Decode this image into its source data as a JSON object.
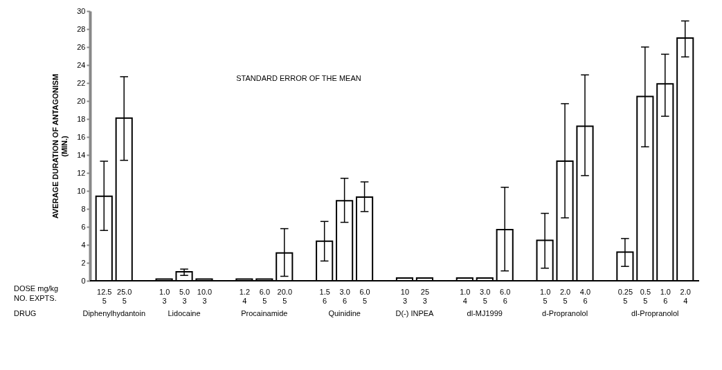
{
  "chart_data": {
    "type": "bar",
    "ylabel": "AVERAGE DURATION OF ANTAGONISM\n(MIN.)",
    "categories": [
      "12.5\n5",
      "25.0\n5",
      null,
      "1.0\n3",
      "5.0\n3",
      "10.0\n3",
      null,
      "1.2\n4",
      "6.0\n5",
      "20.0\n5",
      null,
      "1.5\n6",
      "3.0\n6",
      "6.0\n5",
      null,
      "10\n3",
      "25\n3",
      null,
      "1.0\n4",
      "3.0\n5",
      "6.0\n6",
      null,
      "1.0\n5",
      "2.0\n5",
      "4.0\n6",
      null,
      "0.25\n5",
      "0.5\n5",
      "1.0\n6",
      "2.0\n4"
    ],
    "values": [
      9.4,
      18.1,
      null,
      0.2,
      1.0,
      0.2,
      null,
      0.2,
      0.2,
      3.1,
      null,
      4.4,
      8.9,
      9.3,
      null,
      0.3,
      0.3,
      null,
      0.3,
      0.3,
      5.7,
      null,
      4.5,
      13.3,
      17.2,
      null,
      3.2,
      20.5,
      21.9,
      27.0
    ],
    "errors": [
      [
        5.6,
        13.3
      ],
      [
        13.4,
        22.7
      ],
      null,
      null,
      [
        0.6,
        1.3
      ],
      null,
      null,
      null,
      null,
      [
        0.5,
        5.8
      ],
      null,
      [
        2.2,
        6.6
      ],
      [
        6.5,
        11.4
      ],
      [
        7.7,
        11.0
      ],
      null,
      null,
      null,
      null,
      null,
      null,
      [
        1.1,
        10.4
      ],
      null,
      [
        1.4,
        7.5
      ],
      [
        7.0,
        19.7
      ],
      [
        11.7,
        22.9
      ],
      null,
      [
        1.6,
        4.7
      ],
      [
        14.9,
        26.0
      ],
      [
        18.3,
        25.2
      ],
      [
        24.9,
        28.9
      ]
    ],
    "color": "#ffffff",
    "ylim": [
      0,
      30
    ],
    "yticks": [
      0,
      2,
      4,
      6,
      8,
      10,
      12,
      14,
      16,
      18,
      20,
      22,
      24,
      26,
      28,
      30
    ],
    "grid": false,
    "annotations": [
      "DOSE mg/kg",
      "NO. EXPTS.",
      "DRUG",
      "STANDARD ERROR OF THE MEAN",
      "Diphenylhydantoin",
      "Lidocaine",
      "Procainamide",
      "Quinidine",
      "D(-) INPEA",
      "dl-MJ1999",
      "d-Propranolol",
      "dl-Propranolol"
    ]
  }
}
